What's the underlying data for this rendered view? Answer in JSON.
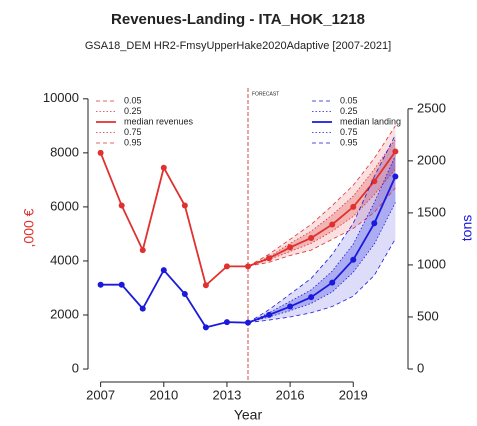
{
  "chart_data": {
    "type": "line",
    "title": "Revenues-Landing - ITA_HOK_1218",
    "subtitle": "GSA18_DEM HR2-FmsyUpperHake2020Adaptive [2007-2021]",
    "x_label": "Year",
    "y_label": ",000 €",
    "y2_label": "tons",
    "annotation": "FORECAST",
    "forecast_x": 2014,
    "x": [
      2007,
      2008,
      2009,
      2010,
      2011,
      2012,
      2013,
      2014,
      2015,
      2016,
      2017,
      2018,
      2019,
      2020,
      2021
    ],
    "xlim": [
      2006.4,
      2021.6
    ],
    "xticks": [
      2007,
      2010,
      2013,
      2016,
      2019
    ],
    "ylim": [
      -480,
      10400
    ],
    "yticks": [
      0,
      2000,
      4000,
      6000,
      8000,
      10000
    ],
    "y2lim": [
      -125,
      2700
    ],
    "y2ticks": [
      0,
      500,
      1000,
      1500,
      2000,
      2500
    ],
    "series": [
      {
        "name": "0.05",
        "color": "#e03030",
        "style": "dashed",
        "values": [
          null,
          null,
          null,
          null,
          null,
          null,
          null,
          3800,
          3950,
          4200,
          4400,
          4800,
          5200,
          5800,
          6700
        ]
      },
      {
        "name": "0.25",
        "color": "#e03030",
        "style": "dotted",
        "values": [
          null,
          null,
          null,
          null,
          null,
          null,
          null,
          3800,
          4050,
          4350,
          4650,
          5100,
          5650,
          6450,
          7400
        ]
      },
      {
        "name": "median revenues",
        "color": "#e03030",
        "style": "solid",
        "values": [
          8000,
          6050,
          4400,
          7450,
          6050,
          3100,
          3800,
          3800,
          4100,
          4500,
          4850,
          5350,
          6000,
          6950,
          8050
        ]
      },
      {
        "name": "0.75",
        "color": "#e03030",
        "style": "dotted",
        "values": [
          null,
          null,
          null,
          null,
          null,
          null,
          null,
          3800,
          4150,
          4650,
          5100,
          5700,
          6400,
          7400,
          8500
        ]
      },
      {
        "name": "0.95",
        "color": "#e03030",
        "style": "dashed",
        "values": [
          null,
          null,
          null,
          null,
          null,
          null,
          null,
          3800,
          4250,
          4800,
          5350,
          6050,
          6800,
          7800,
          9000
        ]
      },
      {
        "name": "0.05",
        "color": "#1a1adc",
        "style": "dashed",
        "axis": "y2",
        "values": [
          null,
          null,
          null,
          null,
          null,
          null,
          null,
          445,
          470,
          500,
          540,
          600,
          700,
          900,
          1250
        ]
      },
      {
        "name": "0.25",
        "color": "#1a1adc",
        "style": "dotted",
        "axis": "y2",
        "values": [
          null,
          null,
          null,
          null,
          null,
          null,
          null,
          445,
          500,
          560,
          630,
          740,
          930,
          1200,
          1600
        ]
      },
      {
        "name": "median landing",
        "color": "#1a1adc",
        "style": "solid",
        "axis": "y2",
        "values": [
          810,
          810,
          580,
          950,
          720,
          400,
          450,
          445,
          520,
          600,
          690,
          830,
          1050,
          1400,
          1850
        ]
      },
      {
        "name": "0.75",
        "color": "#1a1adc",
        "style": "dotted",
        "axis": "y2",
        "values": [
          null,
          null,
          null,
          null,
          null,
          null,
          null,
          445,
          540,
          650,
          760,
          940,
          1200,
          1600,
          2050
        ]
      },
      {
        "name": "0.95",
        "color": "#1a1adc",
        "style": "dashed",
        "axis": "y2",
        "values": [
          null,
          null,
          null,
          null,
          null,
          null,
          null,
          445,
          570,
          720,
          870,
          1100,
          1400,
          1850,
          2250
        ]
      }
    ]
  }
}
